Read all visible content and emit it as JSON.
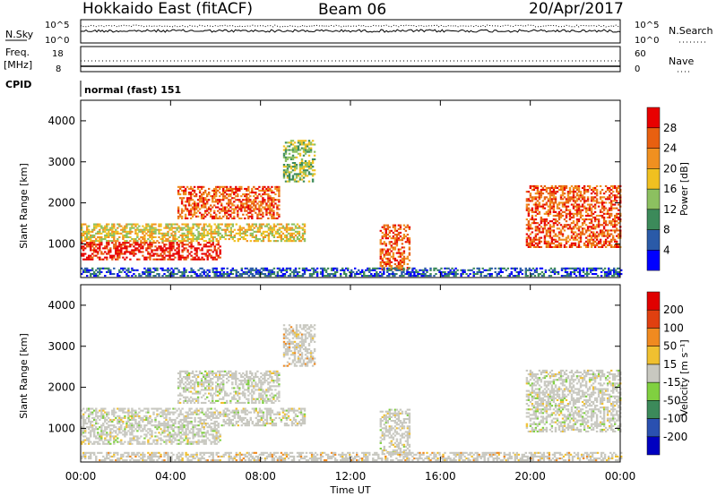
{
  "header": {
    "station": "Hokkaido East (fitACF)",
    "beam": "Beam 06",
    "date": "20/Apr/2017"
  },
  "noise_panel": {
    "left_label": "N.Sky",
    "right_label": "N.Search",
    "left_ticks": [
      "10^5",
      "10^0"
    ],
    "right_ticks": [
      "10^5",
      "10^0"
    ]
  },
  "freq_panel": {
    "left_label_line1": "Freq.",
    "left_label_line2": "[MHz]",
    "right_label": "Nave",
    "left_ticks": [
      "18",
      "8"
    ],
    "right_ticks": [
      "60",
      "0"
    ]
  },
  "cpid": {
    "label": "CPID",
    "value": "normal (fast) 151"
  },
  "chart_data": [
    {
      "type": "heatmap",
      "quantity": "Power",
      "ylabel": "Slant Range [km]",
      "ylim": [
        180,
        4500
      ],
      "yticks": [
        "1000",
        "2000",
        "3000",
        "4000"
      ],
      "colorbar_label": "Power [dB]",
      "colorbar_ticks": [
        "4",
        "8",
        "12",
        "16",
        "20",
        "24",
        "28"
      ],
      "colorbar_colors": [
        "#0000ff",
        "#2a5aa8",
        "#3c8a5a",
        "#8cc060",
        "#f0c020",
        "#f09020",
        "#e86010",
        "#e80000"
      ],
      "echo_regions": [
        {
          "t0": 0.0,
          "t1": 6.2,
          "r0": 600,
          "r1": 1050,
          "level": 7
        },
        {
          "t0": 0.0,
          "t1": 10.0,
          "r0": 1050,
          "r1": 1500,
          "level": 4
        },
        {
          "t0": 4.3,
          "t1": 8.8,
          "r0": 1600,
          "r1": 2400,
          "level": 6
        },
        {
          "t0": 9.0,
          "t1": 10.4,
          "r0": 2500,
          "r1": 3500,
          "level": 3
        },
        {
          "t0": 13.3,
          "t1": 14.6,
          "r0": 350,
          "r1": 1450,
          "level": 6
        },
        {
          "t0": 0.0,
          "t1": 24.0,
          "r0": 200,
          "r1": 400,
          "level": 1
        },
        {
          "t0": 19.8,
          "t1": 24.0,
          "r0": 900,
          "r1": 2400,
          "level": 6
        }
      ]
    },
    {
      "type": "heatmap",
      "quantity": "Velocity",
      "ylabel": "Slant Range [km]",
      "xlabel": "Time UT",
      "ylim": [
        180,
        4500
      ],
      "yticks": [
        "1000",
        "2000",
        "3000",
        "4000"
      ],
      "xticks": [
        "00:00",
        "04:00",
        "08:00",
        "12:00",
        "16:00",
        "20:00",
        "00:00"
      ],
      "colorbar_label": "Velocity [m s⁻¹]",
      "colorbar_ticks": [
        "200",
        "100",
        "50",
        "15",
        "-15",
        "-50",
        "-100",
        "-200"
      ],
      "colorbar_colors": [
        "#0000c0",
        "#2a50b0",
        "#3c8a5a",
        "#80d040",
        "#c8c8c0",
        "#f0c030",
        "#f08a20",
        "#e04010",
        "#e00000"
      ],
      "echo_regions": [
        {
          "t0": 0.0,
          "t1": 6.2,
          "r0": 600,
          "r1": 1050,
          "level": 4
        },
        {
          "t0": 0.0,
          "t1": 10.0,
          "r0": 1050,
          "r1": 1500,
          "level": 4
        },
        {
          "t0": 4.3,
          "t1": 8.8,
          "r0": 1600,
          "r1": 2400,
          "level": 4
        },
        {
          "t0": 9.0,
          "t1": 10.4,
          "r0": 2500,
          "r1": 3500,
          "level": 5
        },
        {
          "t0": 13.3,
          "t1": 14.6,
          "r0": 350,
          "r1": 1450,
          "level": 4
        },
        {
          "t0": 0.0,
          "t1": 24.0,
          "r0": 200,
          "r1": 400,
          "level": 5
        },
        {
          "t0": 19.8,
          "t1": 24.0,
          "r0": 900,
          "r1": 2400,
          "level": 4
        }
      ]
    }
  ]
}
